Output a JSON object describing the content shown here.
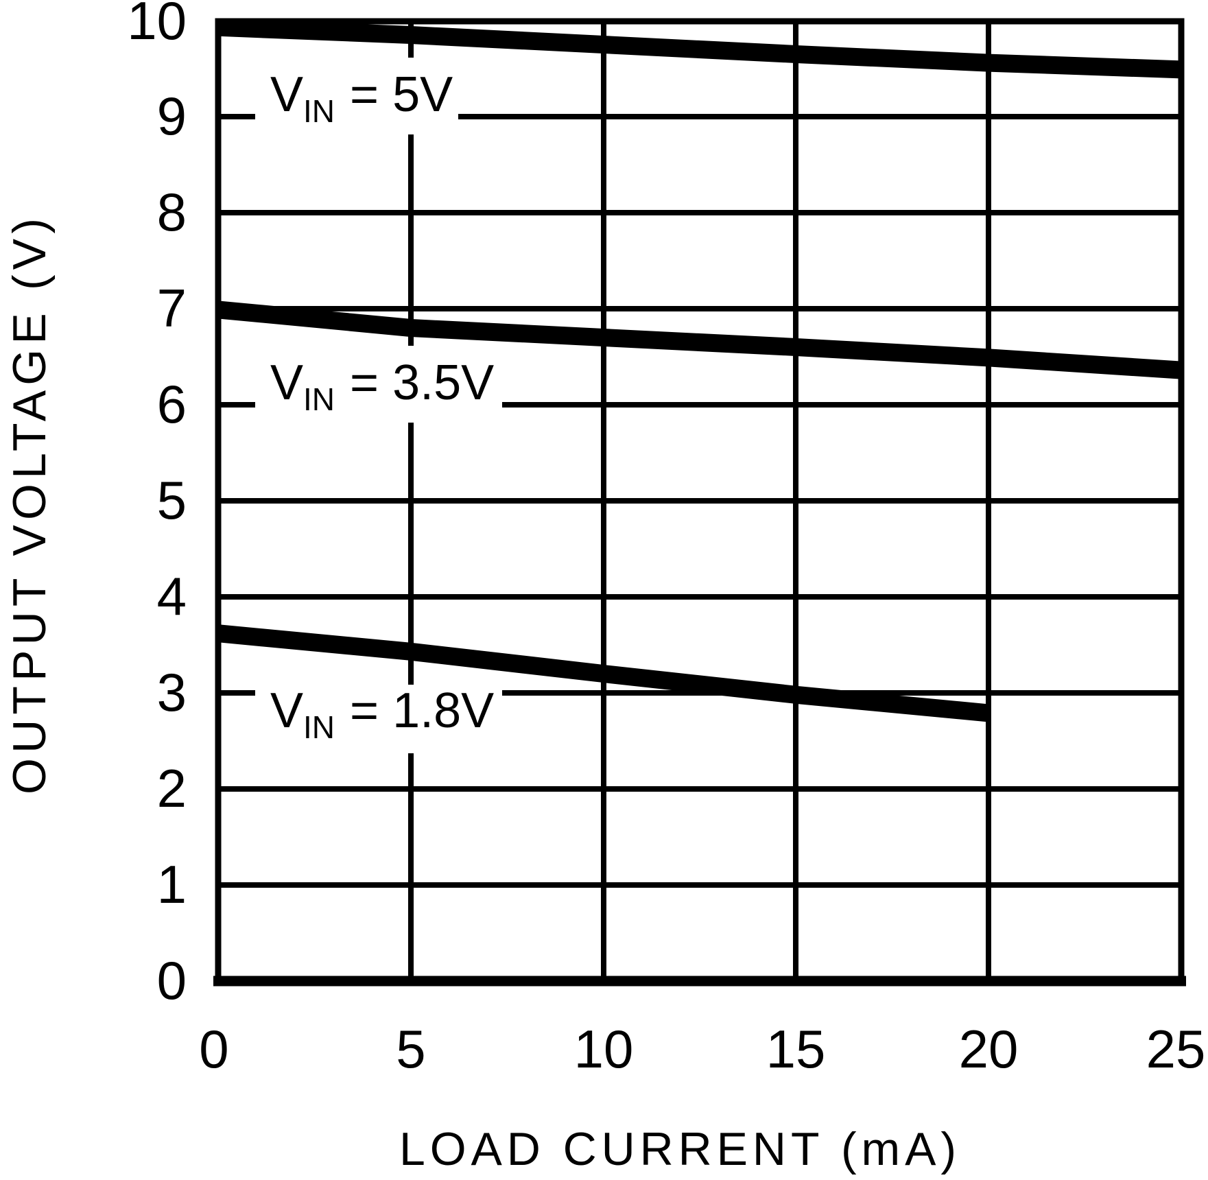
{
  "chart_data": {
    "type": "line",
    "title": "",
    "xlabel": "LOAD CURRENT (mA)",
    "ylabel": "OUTPUT VOLTAGE (V)",
    "xlim": [
      0,
      25
    ],
    "ylim": [
      0,
      10
    ],
    "grid": "on",
    "legend_position": "inline-labels",
    "x_ticks": [
      "0",
      "5",
      "10",
      "15",
      "20",
      "25"
    ],
    "y_ticks": [
      "10",
      "9",
      "8",
      "7",
      "6",
      "5",
      "4",
      "3",
      "2",
      "1",
      "0"
    ],
    "colors": {
      "stroke": "#000000",
      "background": "#ffffff"
    },
    "series": [
      {
        "name": "VIN = 5V",
        "label": {
          "pre": "V",
          "sub": "IN",
          "post": "= 5V"
        },
        "points": [
          [
            0,
            9.93
          ],
          [
            5,
            9.85
          ],
          [
            10,
            9.75
          ],
          [
            15,
            9.65
          ],
          [
            20,
            9.56
          ],
          [
            25,
            9.49
          ]
        ]
      },
      {
        "name": "VIN = 3.5V",
        "label": {
          "pre": "V",
          "sub": "IN",
          "post": "= 3.5V"
        },
        "points": [
          [
            0,
            6.99
          ],
          [
            5,
            6.8
          ],
          [
            10,
            6.7
          ],
          [
            15,
            6.6
          ],
          [
            20,
            6.49
          ],
          [
            25,
            6.36
          ]
        ]
      },
      {
        "name": "VIN = 1.8V",
        "label": {
          "pre": "V",
          "sub": "IN",
          "post": "= 1.8V"
        },
        "points": [
          [
            0,
            3.62
          ],
          [
            5,
            3.43
          ],
          [
            10,
            3.2
          ],
          [
            15,
            2.98
          ],
          [
            20,
            2.79
          ]
        ]
      }
    ]
  }
}
